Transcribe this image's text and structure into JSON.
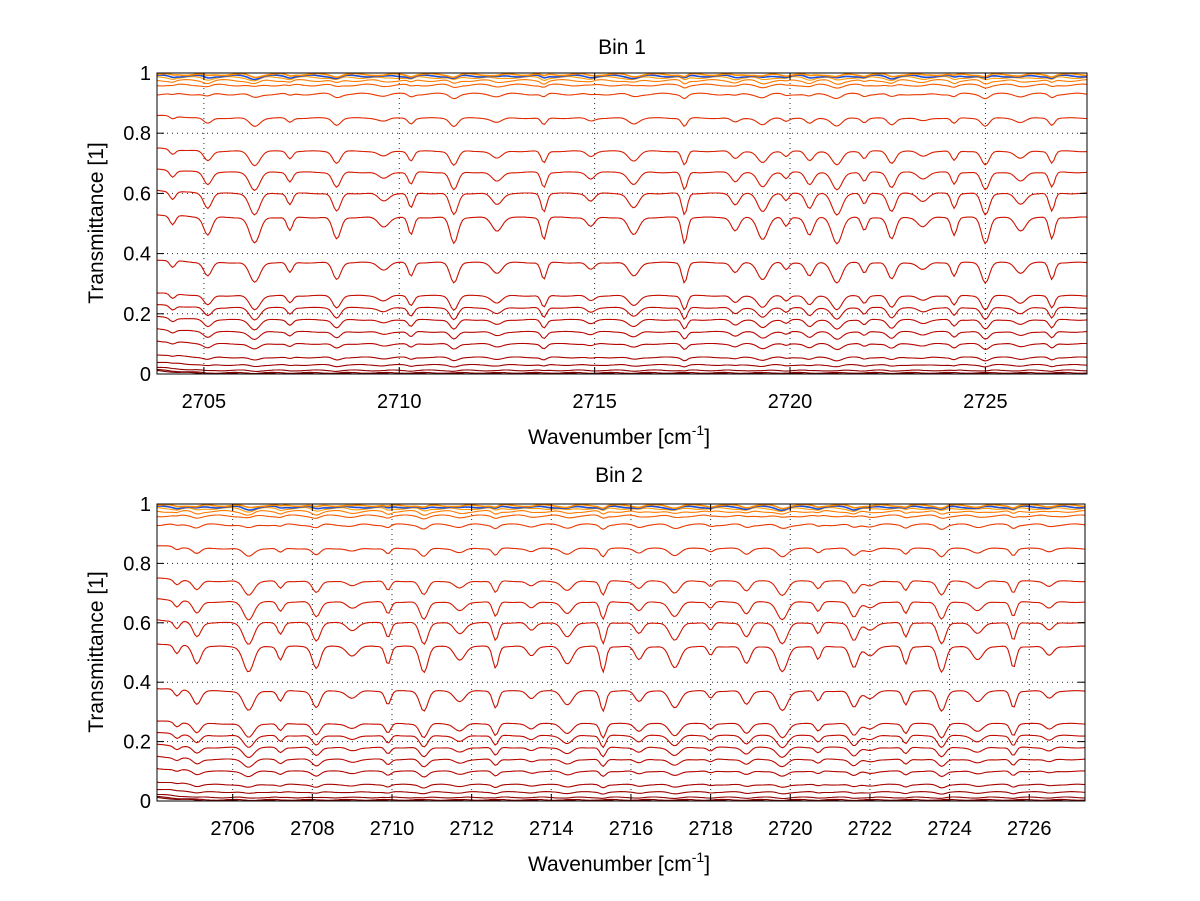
{
  "chart_data": [
    {
      "type": "line",
      "title": "Bin 1",
      "xlabel": "Wavenumber [cm",
      "xlabel_sup": "-1",
      "xlabel_end": "]",
      "ylabel": "Transmittance [1]",
      "xlim": [
        2703.8,
        2727.6
      ],
      "ylim": [
        0,
        1
      ],
      "xticks": [
        2705,
        2710,
        2715,
        2720,
        2725
      ],
      "yticks": [
        0,
        0.2,
        0.4,
        0.6,
        0.8,
        1
      ],
      "yticklabels": [
        "0",
        "0.2",
        "0.4",
        "0.6",
        "0.8",
        "1"
      ],
      "grid": true,
      "grid_style": "dotted",
      "num_series": 22,
      "series_base_levels": [
        0.995,
        0.99,
        0.985,
        0.975,
        0.96,
        0.93,
        0.85,
        0.74,
        0.67,
        0.6,
        0.52,
        0.37,
        0.26,
        0.22,
        0.18,
        0.14,
        0.1,
        0.055,
        0.03,
        0.012,
        0.004,
        0.001
      ],
      "series_colors": [
        "#ff8c00",
        "#1f4fd8",
        "#ff9a00",
        "#ff7a00",
        "#f25a00",
        "#e83a00",
        "#e02a00",
        "#d82000",
        "#d41a00",
        "#d01500",
        "#cc1200",
        "#c81000",
        "#c40e00",
        "#c00c00",
        "#bc0a00",
        "#b80800",
        "#b40600",
        "#a80400",
        "#9c0300",
        "#900200",
        "#840100",
        "#780000"
      ],
      "absorption_lines": [
        2704.2,
        2705.1,
        2706.3,
        2707.2,
        2708.4,
        2709.6,
        2710.3,
        2711.4,
        2712.5,
        2713.7,
        2714.9,
        2716.0,
        2717.3,
        2718.6,
        2719.3,
        2719.9,
        2720.5,
        2721.2,
        2721.9,
        2722.6,
        2723.4,
        2724.2,
        2725.0,
        2725.9,
        2726.7
      ]
    },
    {
      "type": "line",
      "title": "Bin 2",
      "xlabel": "Wavenumber [cm",
      "xlabel_sup": "-1",
      "xlabel_end": "]",
      "ylabel": "Transmittance [1]",
      "xlim": [
        2704.1,
        2727.4
      ],
      "ylim": [
        0,
        1
      ],
      "xticks": [
        2706,
        2708,
        2710,
        2712,
        2714,
        2716,
        2718,
        2720,
        2722,
        2724,
        2726
      ],
      "yticks": [
        0,
        0.2,
        0.4,
        0.6,
        0.8,
        1
      ],
      "yticklabels": [
        "0",
        "0.2",
        "0.4",
        "0.6",
        "0.8",
        "1"
      ],
      "grid": true,
      "grid_style": "dotted",
      "num_series": 22,
      "series_base_levels": [
        0.995,
        0.99,
        0.985,
        0.975,
        0.96,
        0.93,
        0.85,
        0.74,
        0.67,
        0.6,
        0.52,
        0.37,
        0.26,
        0.22,
        0.18,
        0.14,
        0.1,
        0.055,
        0.03,
        0.012,
        0.004,
        0.001
      ],
      "series_colors": [
        "#ff8c00",
        "#1f4fd8",
        "#ff9a00",
        "#ff7a00",
        "#f25a00",
        "#e83a00",
        "#e02a00",
        "#d82000",
        "#d41a00",
        "#d01500",
        "#cc1200",
        "#c81000",
        "#c40e00",
        "#c00c00",
        "#bc0a00",
        "#b80800",
        "#b40600",
        "#a80400",
        "#9c0300",
        "#900200",
        "#840100",
        "#780000"
      ],
      "absorption_lines": [
        2704.6,
        2705.1,
        2706.4,
        2707.2,
        2708.1,
        2709.0,
        2709.9,
        2710.8,
        2711.7,
        2712.6,
        2713.5,
        2714.4,
        2715.3,
        2716.2,
        2717.1,
        2718.0,
        2718.9,
        2719.8,
        2720.7,
        2721.6,
        2722.0,
        2722.9,
        2723.8,
        2724.7,
        2725.6,
        2726.5
      ]
    }
  ]
}
